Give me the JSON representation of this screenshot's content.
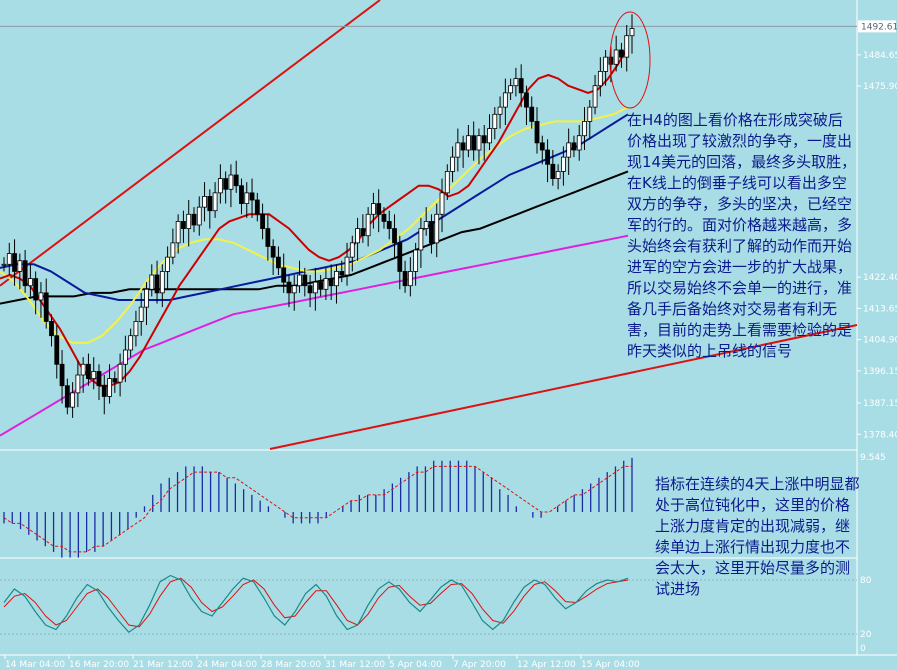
{
  "colors": {
    "background": "#a9dde5",
    "candles": "#000000",
    "ma_fast": "#cc0000",
    "ma_mid": "#f2f24a",
    "ma_slow": "#0a1a9c",
    "ma_long": "#000000",
    "ma_xlong": "#dd22dd",
    "trendline": "#dd1111",
    "macd_bars": "#1b2ba6",
    "macd_signal": "#dd1111",
    "stoch_main": "#1a8a8a",
    "stoch_signal": "#dd1111",
    "note_text": "#0b1a8c",
    "axis_text": "#ffffff"
  },
  "price_axis": {
    "current_price": "1492.61",
    "ticks": [
      "1484.65",
      "1475.90",
      "1422.40",
      "1413.65",
      "1404.90",
      "1396.15",
      "1387.15",
      "1378.40"
    ],
    "ylim": [
      1374,
      1500
    ]
  },
  "macd_axis": {
    "ticks": [
      "9.545"
    ]
  },
  "stoch_axis": {
    "ticks": [
      "80",
      "20",
      "0"
    ]
  },
  "time_axis": {
    "labels": [
      "14 Mar 04:00",
      "16 Mar 20:00",
      "21 Mar 12:00",
      "24 Mar 04:00",
      "28 Mar 20:00",
      "31 Mar 12:00",
      "5 Apr 04:00",
      "7 Apr 20:00",
      "12 Apr 12:00",
      "15 Apr 04:00"
    ]
  },
  "annotations": {
    "main": [
      "在H4的图上看价格在形成突破后",
      "价格出现了较激烈的争夺，一度出",
      "现14美元的回落，最终多头取胜，",
      "在K线上的倒垂子线可以看出多空",
      "双方的争夺，多头的坚决，已经空",
      "军的行的。面对价格越来越高，多",
      "头始终会有获利了解的动作而开始",
      "进军的空方会进一步的扩大战果，",
      "所以交易始终不会单一的进行，准",
      "备几手后备始终对交易者有利无",
      "害，目前的走势上看需要检验的是",
      "昨天类似的上吊线的信号"
    ],
    "indicator": [
      "指标在连续的4天上涨中明显都",
      "处于高位钝化中，这里的价格",
      "上涨力度肯定的出现减弱，继",
      "续单边上涨行情出现力度也不",
      "会太大，这里开始尽量多的测",
      "试进场"
    ]
  },
  "chart_data": [
    {
      "type": "candlestick",
      "title": "",
      "ylim": [
        1374,
        1500
      ],
      "close": [
        1426,
        1429,
        1424,
        1427,
        1420,
        1422,
        1416,
        1418,
        1410,
        1406,
        1398,
        1392,
        1386,
        1390,
        1395,
        1398,
        1394,
        1396,
        1392,
        1389,
        1394,
        1393,
        1398,
        1402,
        1406,
        1410,
        1414,
        1419,
        1423,
        1418,
        1424,
        1428,
        1432,
        1438,
        1436,
        1440,
        1437,
        1442,
        1445,
        1441,
        1446,
        1450,
        1447,
        1451,
        1448,
        1443,
        1446,
        1444,
        1440,
        1436,
        1431,
        1428,
        1425,
        1421,
        1418,
        1420,
        1423,
        1420,
        1418,
        1421,
        1419,
        1422,
        1420,
        1424,
        1423,
        1428,
        1432,
        1436,
        1434,
        1440,
        1443,
        1440,
        1438,
        1436,
        1432,
        1424,
        1420,
        1424,
        1430,
        1436,
        1438,
        1432,
        1440,
        1446,
        1452,
        1456,
        1460,
        1458,
        1462,
        1458,
        1462,
        1460,
        1464,
        1468,
        1470,
        1474,
        1476,
        1478,
        1474,
        1470,
        1466,
        1460,
        1458,
        1454,
        1450,
        1452,
        1456,
        1460,
        1458,
        1462,
        1466,
        1470,
        1476,
        1480,
        1484,
        1482,
        1486,
        1484,
        1490,
        1492
      ],
      "ma_fast": [
        1422,
        1423,
        1422,
        1420,
        1416,
        1412,
        1408,
        1403,
        1398,
        1394,
        1392,
        1392,
        1393,
        1396,
        1400,
        1405,
        1410,
        1415,
        1420,
        1424,
        1428,
        1432,
        1436,
        1438,
        1439,
        1440,
        1440,
        1440,
        1438,
        1436,
        1433,
        1430,
        1428,
        1427,
        1428,
        1430,
        1433,
        1437,
        1440,
        1442,
        1444,
        1446,
        1448,
        1448,
        1447,
        1445,
        1446,
        1448,
        1452,
        1456,
        1460,
        1465,
        1470,
        1475,
        1478,
        1479,
        1478,
        1476,
        1475,
        1474,
        1475,
        1478,
        1482,
        1487
      ],
      "ma_mid": [
        1424,
        1421,
        1416,
        1410,
        1406,
        1404,
        1404,
        1406,
        1410,
        1415,
        1421,
        1426,
        1430,
        1432,
        1433,
        1433,
        1432,
        1430,
        1428,
        1426,
        1425,
        1424,
        1424,
        1425,
        1426,
        1428,
        1430,
        1433,
        1436,
        1440,
        1444,
        1448,
        1452,
        1456,
        1459,
        1462,
        1464,
        1465,
        1466,
        1466,
        1466,
        1467,
        1468,
        1470
      ],
      "ma_slow": [
        1425,
        1426,
        1426,
        1424,
        1421,
        1418,
        1417,
        1416,
        1416,
        1416,
        1416,
        1417,
        1418,
        1419,
        1420,
        1421,
        1422,
        1423,
        1424,
        1425,
        1426,
        1427,
        1429,
        1431,
        1433,
        1436,
        1439,
        1442,
        1445,
        1448,
        1451,
        1453,
        1455,
        1457,
        1459,
        1462,
        1465,
        1468
      ],
      "ma_long": [
        1415,
        1416,
        1417,
        1417,
        1417,
        1418,
        1418,
        1419,
        1419,
        1419,
        1419,
        1419,
        1419,
        1419,
        1419,
        1420,
        1420,
        1421,
        1422,
        1423,
        1425,
        1427,
        1429,
        1431,
        1433,
        1435,
        1436,
        1438,
        1440,
        1442,
        1444,
        1446,
        1448,
        1450,
        1452
      ],
      "ma_xlong": [
        1378,
        1381,
        1384,
        1387,
        1390,
        1393,
        1396,
        1399,
        1402,
        1404,
        1406,
        1408,
        1410,
        1412,
        1413,
        1414,
        1415,
        1416,
        1417,
        1418,
        1419,
        1420,
        1421,
        1422,
        1423,
        1424,
        1425,
        1426,
        1427,
        1428,
        1429,
        1430,
        1431,
        1432,
        1433,
        1434
      ]
    },
    {
      "type": "bar",
      "title": "",
      "values": [
        -2,
        -2,
        -3,
        -4,
        -5,
        -6,
        -7,
        -8,
        -8,
        -8,
        -7,
        -7,
        -6,
        -5,
        -4,
        -3,
        -1,
        1,
        3,
        5,
        6,
        7,
        8,
        8,
        8,
        7,
        7,
        6,
        5,
        4,
        3,
        2,
        1,
        0,
        -1,
        -2,
        -2,
        -2,
        -2,
        -1,
        0,
        1,
        2,
        3,
        3,
        3,
        4,
        5,
        6,
        7,
        8,
        8,
        9,
        9,
        9,
        9,
        9,
        8,
        7,
        6,
        4,
        3,
        1,
        0,
        -1,
        -1,
        0,
        1,
        2,
        3,
        4,
        5,
        6,
        7,
        8,
        9,
        9.5
      ],
      "signal": [
        -1,
        -2,
        -2,
        -3,
        -4,
        -5,
        -6,
        -6,
        -7,
        -7,
        -7,
        -6,
        -6,
        -5,
        -4,
        -3,
        -2,
        -1,
        1,
        2,
        4,
        5,
        6,
        7,
        7,
        7,
        7,
        6,
        6,
        5,
        4,
        3,
        2,
        1,
        0,
        -1,
        -1,
        -1,
        -1,
        -1,
        0,
        1,
        2,
        2,
        3,
        3,
        3,
        4,
        5,
        6,
        7,
        7,
        8,
        8,
        8,
        8,
        8,
        8,
        7,
        6,
        5,
        4,
        3,
        2,
        1,
        0,
        0,
        1,
        2,
        3,
        3,
        4,
        5,
        6,
        7,
        8,
        8
      ]
    },
    {
      "type": "line",
      "title": "",
      "ylim": [
        0,
        100
      ],
      "main": [
        55,
        70,
        62,
        45,
        30,
        25,
        40,
        60,
        75,
        68,
        50,
        35,
        22,
        30,
        52,
        78,
        85,
        80,
        60,
        45,
        40,
        55,
        70,
        82,
        78,
        60,
        40,
        30,
        45,
        65,
        75,
        62,
        40,
        25,
        30,
        52,
        70,
        78,
        70,
        55,
        45,
        58,
        72,
        80,
        74,
        55,
        35,
        25,
        35,
        55,
        72,
        80,
        75,
        60,
        48,
        55,
        68,
        76,
        80,
        78,
        82
      ],
      "signal": [
        50,
        62,
        65,
        55,
        40,
        30,
        35,
        50,
        65,
        70,
        60,
        45,
        30,
        28,
        42,
        62,
        78,
        82,
        72,
        55,
        45,
        50,
        62,
        75,
        80,
        70,
        52,
        38,
        40,
        55,
        68,
        68,
        52,
        35,
        30,
        42,
        60,
        72,
        74,
        62,
        52,
        54,
        65,
        75,
        76,
        65,
        48,
        35,
        32,
        45,
        62,
        75,
        78,
        68,
        56,
        55,
        62,
        70,
        76,
        78,
        80
      ]
    }
  ]
}
